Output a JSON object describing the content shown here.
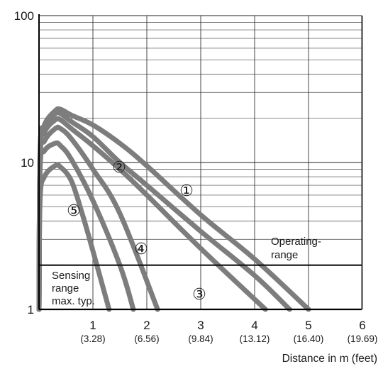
{
  "chart_data": {
    "type": "line",
    "title": "",
    "xlabel": "Distance in m (feet)",
    "ylabel": "",
    "y_scale": "log",
    "xlim": [
      0,
      6
    ],
    "ylim": [
      1,
      100
    ],
    "x_ticks": [
      {
        "value": 1,
        "label": "1",
        "sublabel": "(3.28)"
      },
      {
        "value": 2,
        "label": "2",
        "sublabel": "(6.56)"
      },
      {
        "value": 3,
        "label": "3",
        "sublabel": "(9.84)"
      },
      {
        "value": 4,
        "label": "4",
        "sublabel": "(13.12)"
      },
      {
        "value": 5,
        "label": "5",
        "sublabel": "(16.40)"
      },
      {
        "value": 6,
        "label": "6",
        "sublabel": "(19.69)"
      }
    ],
    "y_ticks": [
      {
        "value": 1,
        "label": "1"
      },
      {
        "value": 10,
        "label": "10"
      },
      {
        "value": 100,
        "label": "100"
      }
    ],
    "grid": true,
    "threshold_line": {
      "y": 2
    },
    "annotations": {
      "operating_range": [
        "Operating-",
        "range"
      ],
      "sensing_range": [
        "Sensing",
        "range",
        "max. typ."
      ]
    },
    "series": [
      {
        "label": "①",
        "x": [
          0,
          0.02,
          0.1,
          0.3,
          0.4,
          0.6,
          1.0,
          1.5,
          2.0,
          3.0,
          4.0,
          5.0
        ],
        "y": [
          1,
          12,
          18,
          22.5,
          23,
          21,
          18,
          13.5,
          9.5,
          4.4,
          2.2,
          1.0
        ]
      },
      {
        "label": "②",
        "x": [
          0,
          0.02,
          0.1,
          0.3,
          0.4,
          0.6,
          1.0,
          1.5,
          2.0,
          3.0,
          4.0,
          4.65
        ],
        "y": [
          1,
          11.5,
          17,
          21.5,
          21.5,
          19,
          15,
          10,
          7,
          3.4,
          1.7,
          1.0
        ]
      },
      {
        "label": "③",
        "x": [
          0,
          0.02,
          0.1,
          0.3,
          0.4,
          0.6,
          1.0,
          1.5,
          2.0,
          3.0,
          4.2
        ],
        "y": [
          1,
          11,
          16,
          19.5,
          19.5,
          17,
          13,
          9,
          6,
          2.6,
          1.0
        ]
      },
      {
        "label": "④",
        "x": [
          0,
          0.02,
          0.1,
          0.3,
          0.4,
          0.6,
          1.0,
          1.5,
          2.2
        ],
        "y": [
          1,
          10.5,
          14,
          17,
          17,
          14.5,
          9,
          4.5,
          1.0
        ]
      },
      {
        "label": "⑤",
        "x": [
          0,
          0.02,
          0.1,
          0.3,
          0.4,
          0.6,
          1.0,
          1.5,
          1.75
        ],
        "y": [
          1,
          9,
          12,
          13.5,
          13,
          10.5,
          5.5,
          2,
          1.0
        ]
      },
      {
        "label": "",
        "x": [
          0,
          0.02,
          0.1,
          0.3,
          0.4,
          0.6,
          0.8,
          1.0,
          1.3
        ],
        "y": [
          1,
          5.5,
          8,
          9.5,
          9.3,
          7.5,
          4.5,
          2.5,
          1.0
        ]
      }
    ]
  }
}
